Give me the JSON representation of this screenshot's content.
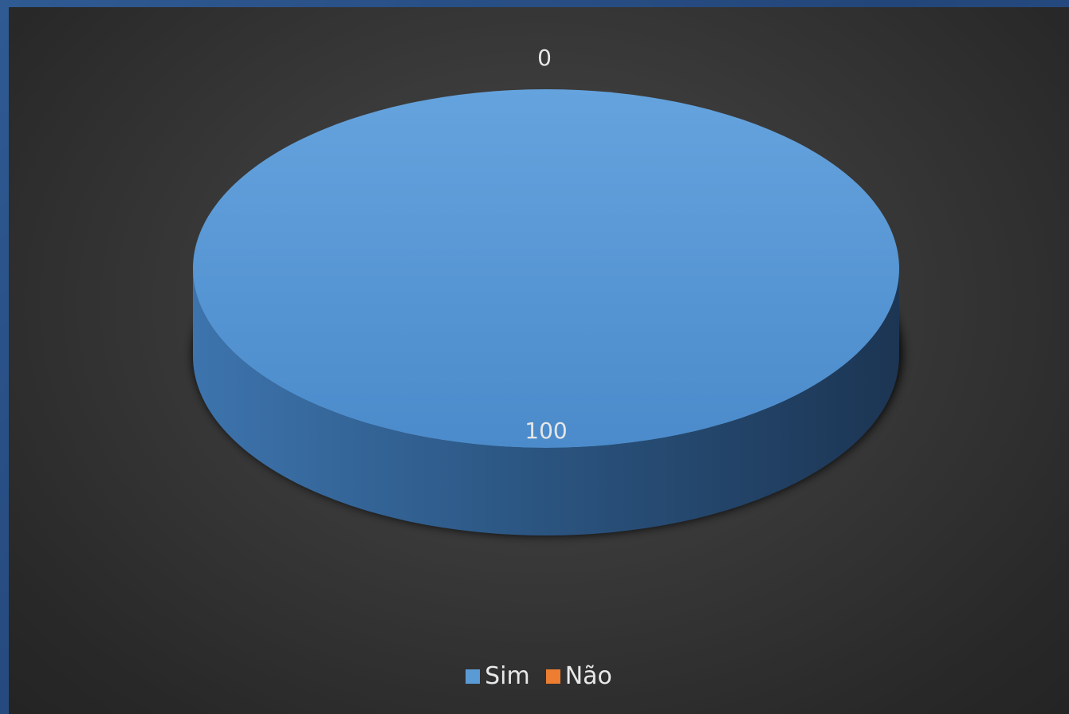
{
  "chart_data": {
    "type": "pie",
    "categories": [
      "Sim",
      "Não"
    ],
    "values": [
      100,
      0
    ],
    "data_labels": [
      "100",
      "0"
    ],
    "legend_position": "bottom",
    "colors": {
      "Sim": "#5b9bd5",
      "Não": "#ed7d31"
    }
  }
}
